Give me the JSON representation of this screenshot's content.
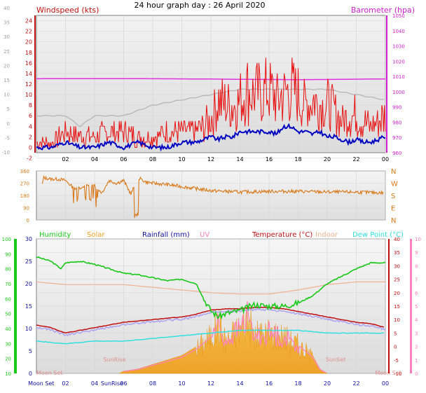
{
  "title": "24 hour graph day : 26 April 2020",
  "colors": {
    "wind": "#e81010",
    "gust_avg": "#0000c0",
    "baro": "#e030e0",
    "gray_line": "#b8b8b8",
    "direction": "#d87818",
    "humidity": "#19c819",
    "solar": "#f0a020",
    "rain": "#1010a0",
    "uv": "#ff80c0",
    "temp": "#c01010",
    "indoor": "#f0b090",
    "dewpoint": "#30e0e0",
    "wind_axis": "#c01010",
    "baro_axis": "#d020d0",
    "dir_axis": "#d87818"
  },
  "chart_data": [
    {
      "type": "line",
      "title": "24 hour graph day : 26 April 2020",
      "x_ticks": [
        "02",
        "04",
        "06",
        "08",
        "10",
        "12",
        "14",
        "16",
        "18",
        "20",
        "22",
        "00"
      ],
      "xlim": [
        0,
        24
      ],
      "left_axis": {
        "label": "Windspeed (kts)",
        "ticks": [
          "-2",
          "0",
          "2",
          "4",
          "6",
          "8",
          "10",
          "12",
          "14",
          "16",
          "18",
          "20",
          "22",
          "24"
        ],
        "ylim": [
          -1,
          25
        ]
      },
      "right_axis": {
        "label": "Barometer (hpa)",
        "ticks": [
          "980",
          "970",
          "960",
          "950",
          "940",
          "930",
          "920",
          "910",
          "900",
          "890",
          "880",
          "870",
          "860",
          "850",
          "840",
          "830"
        ],
        "ylim": [
          960,
          1050
        ]
      },
      "outer_left_axis": {
        "ticks": [
          "-10",
          "-5",
          "0",
          "5",
          "10",
          "15",
          "20",
          "25",
          "30",
          "35",
          "40"
        ]
      },
      "series": [
        {
          "name": "Barometer",
          "x": [
            0,
            2,
            4,
            6,
            8,
            10,
            12,
            14,
            16,
            18,
            20,
            22,
            24
          ],
          "values": [
            1008.5,
            1008.6,
            1008.6,
            1008.6,
            1008.5,
            1008.4,
            1008.3,
            1008.1,
            1008.0,
            1007.9,
            1008.0,
            1008.2,
            1008.4
          ]
        },
        {
          "name": "Gust",
          "x": [
            0,
            1,
            2,
            3,
            4,
            5,
            6,
            7,
            8,
            9,
            10,
            11,
            12,
            12.5,
            13,
            13.5,
            14,
            14.5,
            15,
            15.5,
            16,
            16.5,
            17,
            17.5,
            18,
            18.5,
            19,
            19.5,
            20,
            20.5,
            21,
            21.5,
            22,
            22.5,
            23,
            23.5,
            24
          ],
          "values": [
            1,
            1,
            3,
            2,
            2,
            3,
            3,
            2,
            2,
            3,
            3,
            3,
            5,
            9,
            8,
            8,
            9,
            11,
            10,
            10,
            11,
            9,
            10,
            11,
            10,
            8,
            9,
            8,
            8,
            7,
            5,
            6,
            6,
            5,
            4,
            5,
            6
          ]
        },
        {
          "name": "Windspeed",
          "x": [
            0,
            1,
            2,
            3,
            4,
            5,
            6,
            7,
            8,
            9,
            10,
            11,
            12,
            12.5,
            13,
            13.5,
            14,
            14.5,
            15,
            15.5,
            16,
            16.5,
            17,
            17.5,
            18,
            18.5,
            19,
            19.5,
            20,
            20.5,
            21,
            21.5,
            22,
            22.5,
            23,
            23.5,
            24
          ],
          "values": [
            0,
            0,
            1,
            0,
            0,
            1,
            0,
            1,
            0,
            0,
            1,
            1,
            2,
            1.5,
            2,
            2,
            3,
            3,
            3,
            3,
            3,
            2.5,
            4,
            4,
            3,
            3,
            2.5,
            3,
            2,
            2,
            1.5,
            1,
            1.5,
            1,
            1,
            1.5,
            2
          ]
        },
        {
          "name": "Average",
          "x": [
            0,
            2,
            3,
            4,
            5,
            6,
            7,
            8,
            10,
            12,
            14,
            16,
            18,
            20,
            22,
            24
          ],
          "values": [
            6,
            6,
            4,
            6,
            6,
            6,
            7,
            8,
            9,
            10,
            11,
            11,
            11,
            11,
            10,
            9
          ]
        }
      ]
    },
    {
      "type": "line",
      "x_ticks": [],
      "left_axis": {
        "ticks": [
          "360",
          "270",
          "180",
          "90",
          "0"
        ],
        "ylim": [
          0,
          360
        ]
      },
      "right_axis": {
        "ticks": [
          "N",
          "W",
          "S",
          "E",
          "N"
        ]
      },
      "series": [
        {
          "name": "Direction",
          "x": [
            0.4,
            0.5,
            1,
            1.5,
            2,
            2.5,
            3,
            3.5,
            4,
            4.5,
            5,
            5.5,
            6,
            6.5,
            7,
            7.5,
            8,
            9,
            10,
            12,
            14,
            16,
            18,
            20,
            22,
            23.5
          ],
          "values": [
            260,
            310,
            300,
            300,
            290,
            240,
            230,
            250,
            250,
            200,
            290,
            270,
            290,
            190,
            310,
            280,
            270,
            260,
            245,
            215,
            205,
            210,
            210,
            205,
            205,
            200
          ]
        }
      ]
    },
    {
      "type": "line",
      "x_ticks": [
        "Moon Set",
        "02",
        "04",
        "SunRise",
        "06",
        "08",
        "10",
        "12",
        "14",
        "16",
        "18",
        "20",
        "22",
        "00"
      ],
      "legend": [
        "Humidity",
        "Solar",
        "Rainfall (mm)",
        "UV",
        "Temperature (°C)",
        "Indoor",
        "Dew Point (°C)"
      ],
      "annotations": [
        "SunRise",
        "SunSet",
        "Moon Set",
        "Moon Set"
      ],
      "axis_humidity": {
        "ticks": [
          "10",
          "20",
          "30",
          "40",
          "50",
          "60",
          "70",
          "80",
          "90",
          "100"
        ],
        "ylim": [
          10,
          100
        ]
      },
      "axis_rain": {
        "ticks": [
          "0",
          "5",
          "10",
          "15",
          "20",
          "25",
          "30"
        ],
        "ylim": [
          0,
          30
        ]
      },
      "axis_temp": {
        "ticks": [
          "-10",
          "-5",
          "0",
          "5",
          "10",
          "15",
          "20",
          "25",
          "30",
          "35",
          "40"
        ],
        "ylim": [
          -10,
          40
        ]
      },
      "axis_uv": {
        "ticks": [
          "0",
          "1",
          "2",
          "3",
          "4",
          "5",
          "6",
          "7",
          "8",
          "9",
          "10"
        ],
        "ylim": [
          0,
          10
        ]
      },
      "series": [
        {
          "name": "Humidity",
          "x": [
            0,
            1,
            1.7,
            2,
            3,
            4,
            5,
            6,
            7,
            8,
            9,
            10,
            11,
            11.5,
            12,
            12.5,
            13,
            14,
            15,
            16,
            17,
            18,
            19,
            20,
            21,
            22,
            23,
            24
          ],
          "values": [
            88,
            85,
            80,
            84,
            85,
            83,
            80,
            77,
            76,
            74,
            72,
            73,
            70,
            60,
            52,
            48,
            50,
            52,
            56,
            55,
            55,
            57,
            62,
            70,
            75,
            80,
            84,
            84
          ]
        },
        {
          "name": "Temperature (°C)",
          "x": [
            0,
            1,
            2,
            3,
            4,
            5,
            6,
            7,
            8,
            9,
            10,
            11,
            12,
            13,
            14,
            15,
            16,
            17,
            18,
            19,
            20,
            21,
            22,
            23,
            24
          ],
          "values": [
            8,
            7,
            5,
            6,
            7,
            8,
            9,
            9.5,
            10,
            10.5,
            11,
            12,
            13.5,
            14,
            14,
            14.5,
            14.5,
            14,
            13,
            12,
            11,
            10,
            9,
            8.5,
            7
          ]
        },
        {
          "name": "Indoor",
          "x": [
            0,
            2,
            4,
            6,
            8,
            10,
            12,
            14,
            16,
            18,
            20,
            22,
            24
          ],
          "values": [
            24,
            23,
            23,
            23,
            22,
            21,
            20,
            19.5,
            19.5,
            21,
            23,
            24,
            24
          ]
        },
        {
          "name": "Dew Point (°C)",
          "x": [
            0,
            2,
            4,
            6,
            8,
            10,
            12,
            14,
            16,
            18,
            20,
            22,
            24
          ],
          "values": [
            2,
            1,
            2,
            2,
            3,
            4,
            5,
            6,
            6,
            6,
            5,
            5,
            5
          ]
        },
        {
          "name": "Solar",
          "x": [
            5.7,
            6,
            7,
            8,
            9,
            10,
            11,
            12,
            12.5,
            13,
            14,
            14.5,
            15,
            16,
            17,
            18,
            19,
            19.5,
            20
          ],
          "values": [
            0,
            0.5,
            1,
            2,
            3,
            4,
            6,
            9,
            12,
            8,
            11,
            14,
            9,
            10,
            9,
            7,
            4,
            1,
            0
          ]
        }
      ]
    }
  ]
}
